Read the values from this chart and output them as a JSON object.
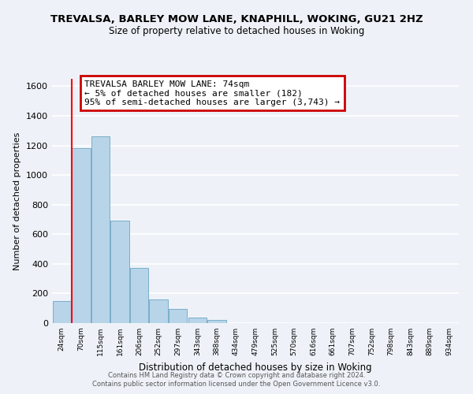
{
  "title": "TREVALSA, BARLEY MOW LANE, KNAPHILL, WOKING, GU21 2HZ",
  "subtitle": "Size of property relative to detached houses in Woking",
  "xlabel": "Distribution of detached houses by size in Woking",
  "ylabel": "Number of detached properties",
  "bar_color": "#b8d4e8",
  "bar_edge_color": "#7aaecb",
  "bin_labels": [
    "24sqm",
    "70sqm",
    "115sqm",
    "161sqm",
    "206sqm",
    "252sqm",
    "297sqm",
    "343sqm",
    "388sqm",
    "434sqm",
    "479sqm",
    "525sqm",
    "570sqm",
    "616sqm",
    "661sqm",
    "707sqm",
    "752sqm",
    "798sqm",
    "843sqm",
    "889sqm",
    "934sqm"
  ],
  "bar_heights": [
    150,
    1180,
    1260,
    690,
    375,
    160,
    95,
    38,
    22,
    0,
    0,
    0,
    0,
    0,
    0,
    0,
    0,
    0,
    0,
    0,
    0
  ],
  "ylim": [
    0,
    1650
  ],
  "yticks": [
    0,
    200,
    400,
    600,
    800,
    1000,
    1200,
    1400,
    1600
  ],
  "property_line_x": 0.5,
  "property_line_label": "TREVALSA BARLEY MOW LANE: 74sqm",
  "annotation_line1": "← 5% of detached houses are smaller (182)",
  "annotation_line2": "95% of semi-detached houses are larger (3,743) →",
  "box_facecolor": "#ffffff",
  "box_edgecolor": "#cc0000",
  "footnote1": "Contains HM Land Registry data © Crown copyright and database right 2024.",
  "footnote2": "Contains public sector information licensed under the Open Government Licence v3.0.",
  "bg_color": "#eef2f8",
  "grid_color": "#ffffff",
  "title_fontsize": 9.5,
  "subtitle_fontsize": 8.5,
  "annotation_fontsize": 8.0,
  "ylabel_fontsize": 8.0,
  "xlabel_fontsize": 8.5,
  "ytick_fontsize": 8.0,
  "xtick_fontsize": 6.5
}
